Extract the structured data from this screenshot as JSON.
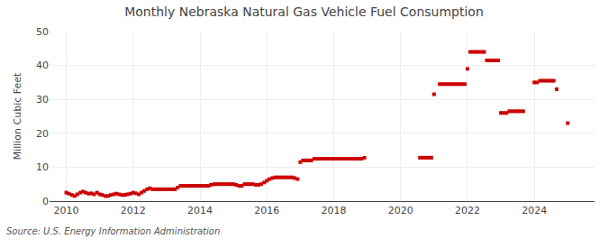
{
  "chart_data": {
    "type": "scatter",
    "title": "Monthly Nebraska Natural Gas Vehicle Fuel Consumption",
    "ylabel": "Million Cubic Feet",
    "annotations": [
      "Source: U.S. Energy Information Administration"
    ],
    "color": "#cc0000",
    "marker": "square",
    "xlim": [
      2009.5,
      2025.8
    ],
    "ylim": [
      0,
      50
    ],
    "xticks": [
      2010,
      2012,
      2014,
      2016,
      2018,
      2020,
      2022,
      2024
    ],
    "yticks": [
      0,
      10,
      20,
      30,
      40,
      50
    ],
    "grid": true,
    "x": [
      2010.0,
      2010.08,
      2010.17,
      2010.25,
      2010.33,
      2010.42,
      2010.5,
      2010.58,
      2010.67,
      2010.75,
      2010.83,
      2010.92,
      2011.0,
      2011.08,
      2011.17,
      2011.25,
      2011.33,
      2011.42,
      2011.5,
      2011.58,
      2011.67,
      2011.75,
      2011.83,
      2011.92,
      2012.0,
      2012.08,
      2012.17,
      2012.25,
      2012.33,
      2012.42,
      2012.5,
      2012.58,
      2012.67,
      2012.75,
      2012.83,
      2012.92,
      2013.0,
      2013.08,
      2013.17,
      2013.25,
      2013.33,
      2013.42,
      2013.5,
      2013.58,
      2013.67,
      2013.75,
      2013.83,
      2013.92,
      2014.0,
      2014.08,
      2014.17,
      2014.25,
      2014.33,
      2014.42,
      2014.5,
      2014.58,
      2014.67,
      2014.75,
      2014.83,
      2014.92,
      2015.0,
      2015.08,
      2015.17,
      2015.25,
      2015.33,
      2015.42,
      2015.5,
      2015.58,
      2015.67,
      2015.75,
      2015.83,
      2015.92,
      2016.0,
      2016.08,
      2016.17,
      2016.25,
      2016.33,
      2016.42,
      2016.5,
      2016.58,
      2016.67,
      2016.75,
      2016.83,
      2016.92,
      2017.0,
      2017.08,
      2017.17,
      2017.25,
      2017.33,
      2017.42,
      2017.5,
      2017.58,
      2017.67,
      2017.75,
      2017.83,
      2017.92,
      2018.0,
      2018.08,
      2018.17,
      2018.25,
      2018.33,
      2018.42,
      2018.5,
      2018.58,
      2018.67,
      2018.75,
      2018.83,
      2018.92,
      2020.58,
      2020.67,
      2020.75,
      2020.83,
      2020.92,
      2021.0,
      2021.17,
      2021.25,
      2021.33,
      2021.42,
      2021.5,
      2021.58,
      2021.67,
      2021.75,
      2021.83,
      2021.92,
      2022.0,
      2022.08,
      2022.17,
      2022.25,
      2022.33,
      2022.42,
      2022.5,
      2022.58,
      2022.67,
      2022.75,
      2022.83,
      2022.92,
      2023.0,
      2023.08,
      2023.17,
      2023.25,
      2023.33,
      2023.42,
      2023.5,
      2023.58,
      2023.67,
      2024.0,
      2024.08,
      2024.17,
      2024.25,
      2024.33,
      2024.42,
      2024.5,
      2024.58,
      2024.67,
      2025.0
    ],
    "values": [
      2.5,
      2.2,
      1.8,
      1.5,
      2.0,
      2.5,
      2.8,
      2.5,
      2.2,
      2.3,
      2.0,
      2.5,
      2.0,
      1.8,
      1.5,
      1.5,
      1.8,
      2.0,
      2.2,
      2.0,
      1.8,
      1.8,
      2.0,
      2.2,
      2.5,
      2.3,
      2.0,
      2.5,
      3.0,
      3.5,
      3.8,
      3.5,
      3.5,
      3.5,
      3.5,
      3.5,
      3.5,
      3.5,
      3.5,
      3.5,
      4.0,
      4.5,
      4.5,
      4.5,
      4.5,
      4.5,
      4.5,
      4.5,
      4.5,
      4.5,
      4.5,
      4.5,
      4.8,
      5.0,
      5.0,
      5.0,
      5.0,
      5.0,
      5.0,
      5.0,
      5.0,
      4.8,
      4.5,
      4.5,
      5.0,
      5.0,
      5.0,
      5.0,
      4.8,
      4.8,
      5.0,
      5.5,
      6.0,
      6.5,
      6.8,
      7.0,
      7.0,
      7.0,
      7.0,
      7.0,
      7.0,
      7.0,
      6.8,
      6.5,
      11.5,
      12.0,
      12.0,
      12.0,
      12.0,
      12.5,
      12.5,
      12.5,
      12.5,
      12.5,
      12.5,
      12.5,
      12.5,
      12.5,
      12.5,
      12.5,
      12.5,
      12.5,
      12.5,
      12.5,
      12.5,
      12.5,
      12.5,
      12.8,
      12.8,
      12.8,
      12.8,
      12.8,
      12.8,
      31.5,
      34.5,
      34.5,
      34.5,
      34.5,
      34.5,
      34.5,
      34.5,
      34.5,
      34.5,
      34.5,
      39.0,
      44.0,
      44.0,
      44.0,
      44.0,
      44.0,
      44.0,
      41.5,
      41.5,
      41.5,
      41.5,
      41.5,
      26.0,
      26.0,
      26.0,
      26.5,
      26.5,
      26.5,
      26.5,
      26.5,
      26.5,
      35.0,
      35.0,
      35.5,
      35.5,
      35.5,
      35.5,
      35.5,
      35.5,
      33.0,
      23.0
    ]
  }
}
